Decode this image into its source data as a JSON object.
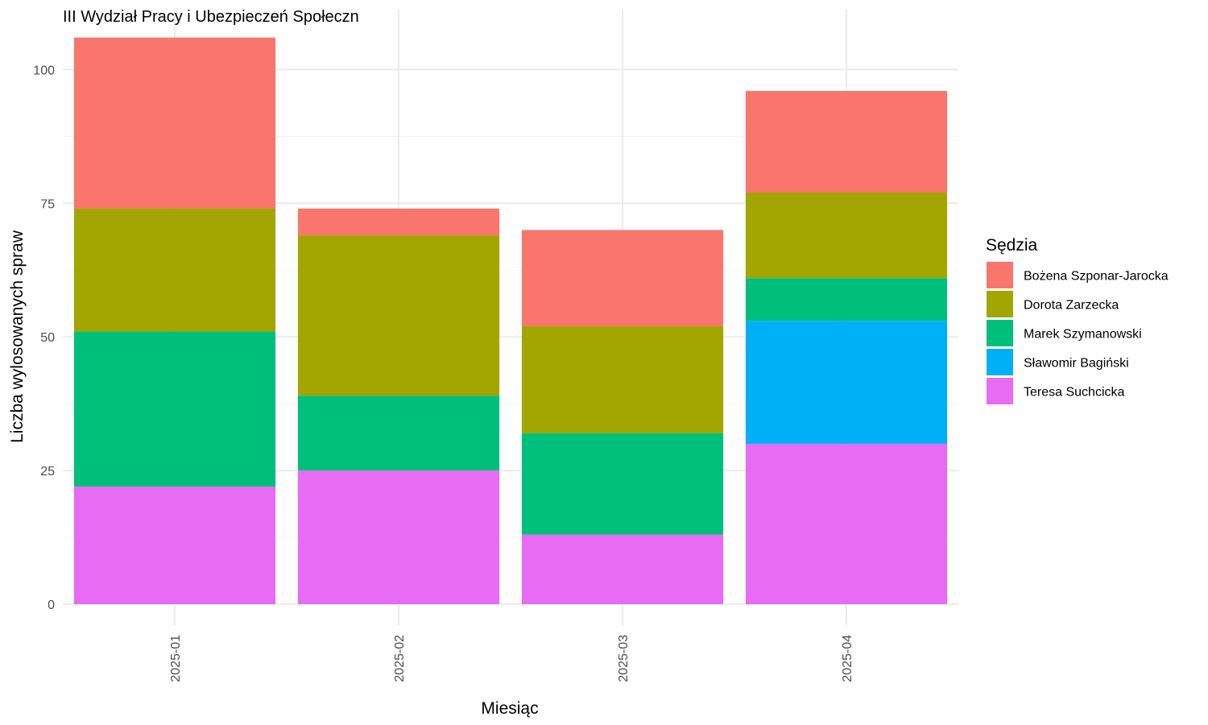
{
  "chart_data": {
    "type": "bar",
    "stacked": true,
    "title": "III Wydział Pracy i Ubezpieczeń Społeczn",
    "xlabel": "Miesiąc",
    "ylabel": "Liczba wylosowanych spraw",
    "ylim": [
      0,
      106
    ],
    "yticks": [
      0,
      25,
      50,
      75,
      100
    ],
    "grid": true,
    "legend_position": "right",
    "legend_title": "Sędzia",
    "categories": [
      "2025-01",
      "2025-02",
      "2025-03",
      "2025-04"
    ],
    "series": [
      {
        "name": "Teresa Suchcicka",
        "color": "#E76BF3",
        "values": [
          22,
          25,
          13,
          30
        ]
      },
      {
        "name": "Sławomir Bagiński",
        "color": "#00B0F6",
        "values": [
          0,
          0,
          0,
          23
        ]
      },
      {
        "name": "Marek Szymanowski",
        "color": "#00BF7D",
        "values": [
          29,
          14,
          19,
          8
        ]
      },
      {
        "name": "Dorota Zarzecka",
        "color": "#A3A500",
        "values": [
          23,
          30,
          20,
          16
        ]
      },
      {
        "name": "Bożena Szponar-Jarocka",
        "color": "#F8766D",
        "values": [
          32,
          5,
          18,
          19
        ]
      }
    ],
    "legend_order": [
      "Bożena Szponar-Jarocka",
      "Dorota Zarzecka",
      "Marek Szymanowski",
      "Sławomir Bagiński",
      "Teresa Suchcicka"
    ]
  }
}
